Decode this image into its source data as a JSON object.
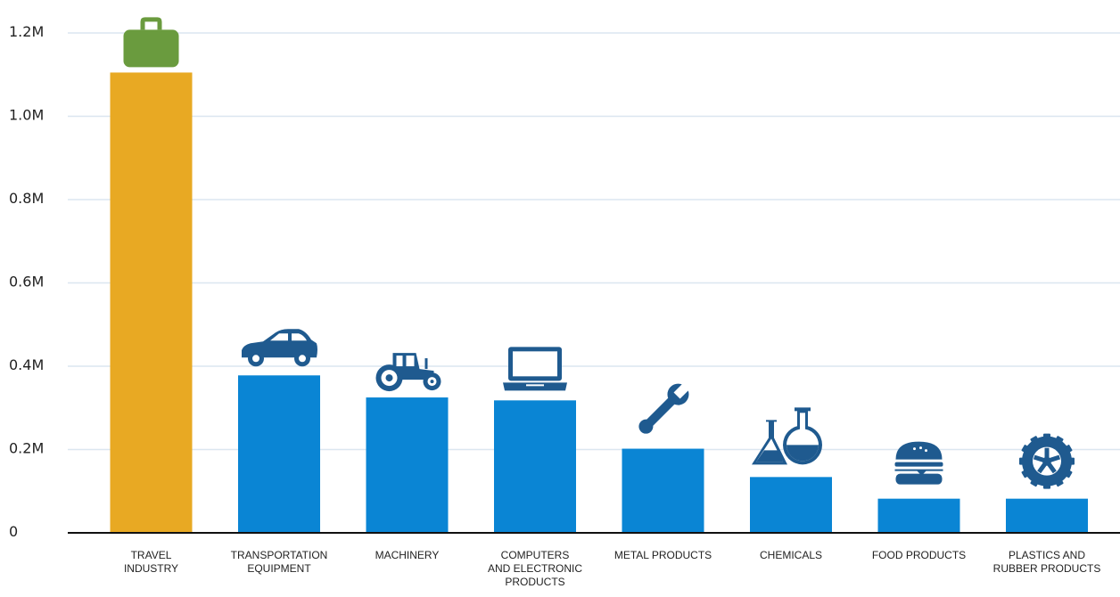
{
  "chart_data": {
    "type": "bar",
    "categories": [
      [
        "TRAVEL",
        "INDUSTRY"
      ],
      [
        "TRANSPORTATION",
        "EQUIPMENT"
      ],
      [
        "MACHINERY"
      ],
      [
        "COMPUTERS",
        "AND ELECTRONIC",
        "PRODUCTS"
      ],
      [
        "METAL PRODUCTS"
      ],
      [
        "CHEMICALS"
      ],
      [
        "FOOD PRODUCTS"
      ],
      [
        "PLASTICS AND",
        "RUBBER PRODUCTS"
      ]
    ],
    "values": [
      1105000,
      378000,
      325000,
      318000,
      202000,
      134000,
      82000,
      82000
    ],
    "icons": [
      "briefcase-icon",
      "car-icon",
      "tractor-icon",
      "laptop-icon",
      "wrench-icon",
      "flask-icon",
      "burger-icon",
      "tire-icon"
    ],
    "bar_colors": [
      "#E8A923",
      "#0A85D4",
      "#0A85D4",
      "#0A85D4",
      "#0A85D4",
      "#0A85D4",
      "#0A85D4",
      "#0A85D4"
    ],
    "icon_colors": [
      "#6A9B3E",
      "#1F5A8F",
      "#1F5A8F",
      "#1F5A8F",
      "#1F5A8F",
      "#1F5A8F",
      "#1F5A8F",
      "#1F5A8F"
    ],
    "ylim": [
      0,
      1200000
    ],
    "yticks": [
      0,
      200000,
      400000,
      600000,
      800000,
      1000000,
      1200000
    ],
    "ytick_labels": [
      "0",
      "0.2M",
      "0.4M",
      "0.6M",
      "0.8M",
      "1.0M",
      "1.2M"
    ],
    "grid": true,
    "title": "",
    "xlabel": "",
    "ylabel": ""
  }
}
